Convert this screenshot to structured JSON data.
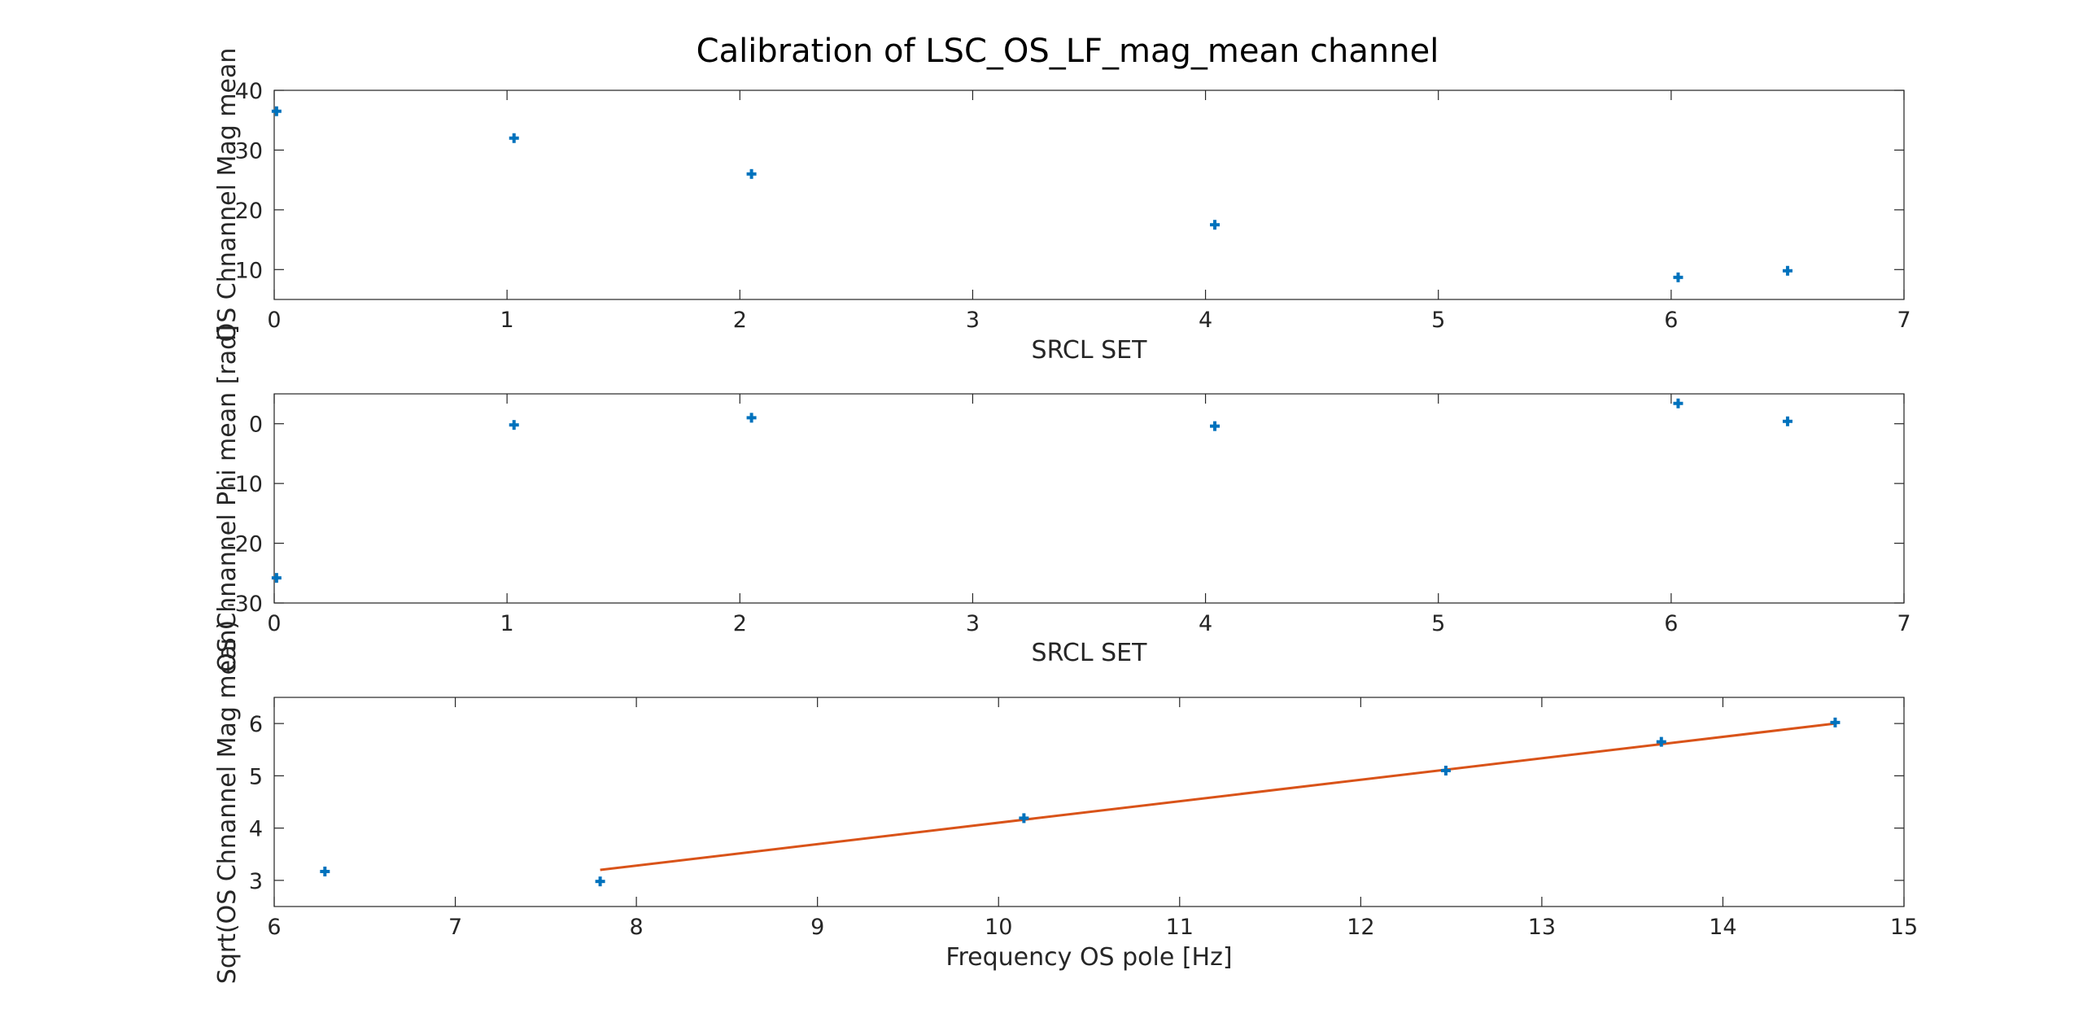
{
  "chart_data": [
    {
      "type": "scatter",
      "title": "Calibration of LSC_OS_LF_mag_mean channel",
      "xlabel": "SRCL SET",
      "ylabel": "OS Chnannel Mag mean",
      "xlim": [
        0,
        7
      ],
      "ylim": [
        5,
        40
      ],
      "xticks": [
        "0",
        "1",
        "2",
        "3",
        "4",
        "5",
        "6",
        "7"
      ],
      "yticks": [
        "10",
        "20",
        "30",
        "40"
      ],
      "grid": true,
      "marker_color": "#0072BD",
      "series": [
        {
          "x": [
            0.01,
            1.03,
            2.05,
            4.04,
            6.03,
            6.5
          ],
          "y": [
            36.5,
            32.0,
            26.0,
            17.5,
            8.7,
            9.8
          ]
        }
      ]
    },
    {
      "type": "scatter",
      "xlabel": "SRCL SET",
      "ylabel": "OS Chnannel Phi mean [rad]",
      "xlim": [
        0,
        7
      ],
      "ylim": [
        -30,
        5
      ],
      "xticks": [
        "0",
        "1",
        "2",
        "3",
        "4",
        "5",
        "6",
        "7"
      ],
      "yticks": [
        "-30",
        "-20",
        "-10",
        "0"
      ],
      "grid": true,
      "marker_color": "#0072BD",
      "series": [
        {
          "x": [
            0.01,
            1.03,
            2.05,
            4.04,
            6.03,
            6.5
          ],
          "y": [
            -25.8,
            -0.2,
            1.0,
            -0.4,
            3.4,
            0.4
          ]
        }
      ]
    },
    {
      "type": "scatter",
      "xlabel": "Frequency OS pole [Hz]",
      "ylabel": "Sqrt(OS Chnannel Mag mean)",
      "xlim": [
        6,
        15
      ],
      "ylim": [
        2.5,
        6.5
      ],
      "xticks": [
        "6",
        "7",
        "8",
        "9",
        "10",
        "11",
        "12",
        "13",
        "14",
        "15"
      ],
      "yticks": [
        "3",
        "4",
        "5",
        "6"
      ],
      "grid": true,
      "marker_color": "#0072BD",
      "fit_color": "#D95319",
      "series": [
        {
          "x": [
            6.28,
            7.8,
            10.14,
            12.47,
            13.66,
            14.62
          ],
          "y": [
            3.17,
            2.98,
            4.19,
            5.1,
            5.65,
            6.02
          ]
        }
      ],
      "fit": {
        "x": [
          7.8,
          14.62
        ],
        "y": [
          3.2,
          6.0
        ]
      }
    }
  ]
}
